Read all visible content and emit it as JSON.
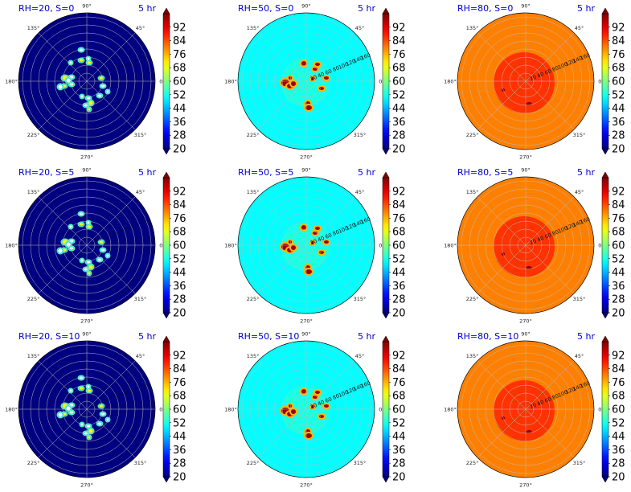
{
  "chart_data": {
    "type": "heatmap",
    "projection": "polar",
    "layout": "3 rows x 3 columns",
    "colormap": "jet",
    "colorbar": {
      "ticks": [
        92,
        84,
        76,
        68,
        60,
        52,
        44,
        36,
        28,
        20
      ],
      "range": [
        20,
        100
      ],
      "extend": "both"
    },
    "angular_ticks": [
      "90°",
      "45°",
      "0°",
      "315°",
      "270°",
      "225°",
      "180°",
      "135°"
    ],
    "radial_ticks": [
      20,
      40,
      60,
      80,
      100,
      120,
      140,
      160
    ],
    "radial_range": [
      0,
      170
    ],
    "grid": true,
    "panels": [
      {
        "title": "RH=20, S=0",
        "time": "5 hr",
        "background_value": 20,
        "rh": 20,
        "show_radial_labels": false
      },
      {
        "title": "RH=50, S=0",
        "time": "5 hr",
        "background_value": 50,
        "rh": 50,
        "show_radial_labels": true
      },
      {
        "title": "RH=80, S=0",
        "time": "5 hr",
        "background_value": 80,
        "rh": 80,
        "show_radial_labels": true
      },
      {
        "title": "RH=20, S=5",
        "time": "5 hr",
        "background_value": 20,
        "rh": 20,
        "show_radial_labels": false
      },
      {
        "title": "RH=50, S=5",
        "time": "5 hr",
        "background_value": 50,
        "rh": 50,
        "show_radial_labels": true
      },
      {
        "title": "RH=80, S=5",
        "time": "5 hr",
        "background_value": 80,
        "rh": 80,
        "show_radial_labels": true
      },
      {
        "title": "RH=20, S=10",
        "time": "5 hr",
        "background_value": 20,
        "rh": 20,
        "show_radial_labels": false
      },
      {
        "title": "RH=50, S=10",
        "time": "5 hr",
        "background_value": 50,
        "rh": 50,
        "show_radial_labels": true
      },
      {
        "title": "RH=80, S=10",
        "time": "5 hr",
        "background_value": 80,
        "rh": 80,
        "show_radial_labels": true
      }
    ]
  }
}
